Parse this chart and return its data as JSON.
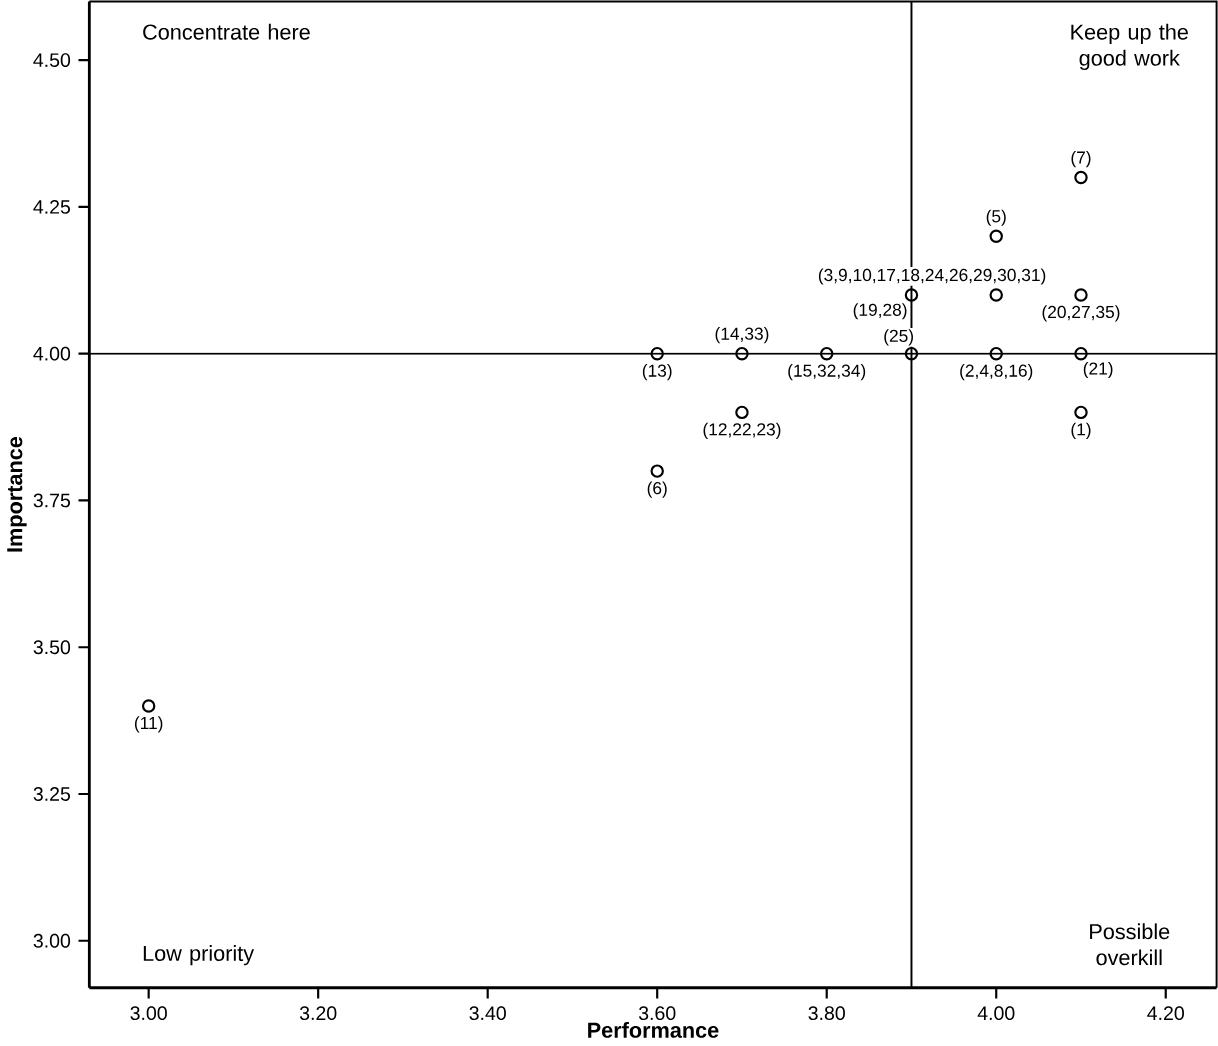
{
  "chart_data": {
    "type": "scatter",
    "xlabel": "Performance",
    "ylabel": "Importance",
    "x": [
      4.1,
      4.0,
      3.9,
      4.0,
      4.1,
      3.6,
      3.7,
      3.8,
      3.9,
      4.0,
      4.1,
      3.7,
      4.1,
      3.6,
      3.0
    ],
    "series": [
      {
        "color": "#000000",
        "values": [
          4.3,
          4.2,
          4.1,
          4.1,
          4.1,
          4.0,
          4.0,
          4.0,
          4.0,
          4.0,
          4.0,
          3.9,
          3.9,
          3.8,
          3.4
        ]
      }
    ],
    "marker": "circle",
    "grid": false,
    "xlim": [
      2.93,
      4.26
    ],
    "ylim": [
      2.92,
      4.6
    ],
    "xticks": [
      {
        "value": 3.0,
        "label": "3.00"
      },
      {
        "value": 3.2,
        "label": "3.20"
      },
      {
        "value": 3.4,
        "label": "3.40"
      },
      {
        "value": 3.6,
        "label": "3.60"
      },
      {
        "value": 3.8,
        "label": "3.80"
      },
      {
        "value": 4.0,
        "label": "4.00"
      },
      {
        "value": 4.2,
        "label": "4.20"
      }
    ],
    "yticks": [
      {
        "value": 3.0,
        "label": "3.00"
      },
      {
        "value": 3.25,
        "label": "3.25"
      },
      {
        "value": 3.5,
        "label": "3.50"
      },
      {
        "value": 3.75,
        "label": "3.75"
      },
      {
        "value": 4.0,
        "label": "4.00"
      },
      {
        "value": 4.25,
        "label": "4.25"
      },
      {
        "value": 4.5,
        "label": "4.50"
      }
    ],
    "ref_lines": [
      {
        "axis": "x",
        "value": 3.9
      },
      {
        "axis": "y",
        "value": 4.0
      }
    ],
    "annotations": [
      "Concentrate here",
      "Keep up the good work",
      "Low priority",
      "Possible overkill",
      {
        "text": "(7)",
        "x": 4.1,
        "y": 4.3
      },
      {
        "text": "(5)",
        "x": 4.0,
        "y": 4.2
      },
      {
        "text": "(3,9,10,17,18,24,26,29,30,31)",
        "x": 3.9,
        "y": 4.1
      },
      {
        "text": "(19,28)",
        "x": 3.9,
        "y": 4.1
      },
      {
        "text": "(20,27,35)",
        "x": 4.1,
        "y": 4.1
      },
      {
        "text": "(13)",
        "x": 3.6,
        "y": 4.0
      },
      {
        "text": "(14,33)",
        "x": 3.7,
        "y": 4.0
      },
      {
        "text": "(15,32,34)",
        "x": 3.8,
        "y": 4.0
      },
      {
        "text": "(25)",
        "x": 3.9,
        "y": 4.0
      },
      {
        "text": "(2,4,8,16)",
        "x": 4.0,
        "y": 4.0
      },
      {
        "text": "(21)",
        "x": 4.1,
        "y": 4.0
      },
      {
        "text": "(12,22,23)",
        "x": 3.7,
        "y": 3.9
      },
      {
        "text": "(1)",
        "x": 4.1,
        "y": 3.9
      },
      {
        "text": "(6)",
        "x": 3.6,
        "y": 3.8
      },
      {
        "text": "(11)",
        "x": 3.0,
        "y": 3.4
      }
    ]
  }
}
